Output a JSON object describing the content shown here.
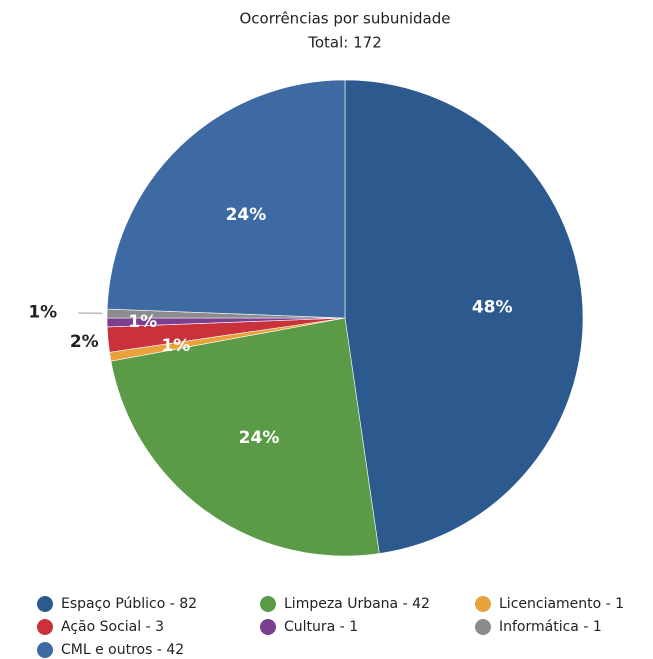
{
  "chart_data": {
    "type": "pie",
    "title": "Ocorrências por subunidade",
    "subtitle": "Total: 172",
    "categories": [
      "Espaço Público - 82",
      "Limpeza Urbana - 42",
      "Licenciamento - 1",
      "Ação Social - 3",
      "Cultura - 1",
      "Informática - 1",
      "CML e outros - 42"
    ],
    "values": [
      47.7,
      24.4,
      0.6,
      1.7,
      0.6,
      0.6,
      24.4
    ],
    "value_labels": [
      "48%",
      "24%",
      "1%",
      "2%",
      "1%",
      "1%",
      "24%"
    ],
    "colors": [
      "#2d5a8e",
      "#5b9a46",
      "#e9a23b",
      "#c9323a",
      "#7b3f8f",
      "#8c8c8c",
      "#3e6aa4"
    ],
    "legend": "bottom"
  }
}
